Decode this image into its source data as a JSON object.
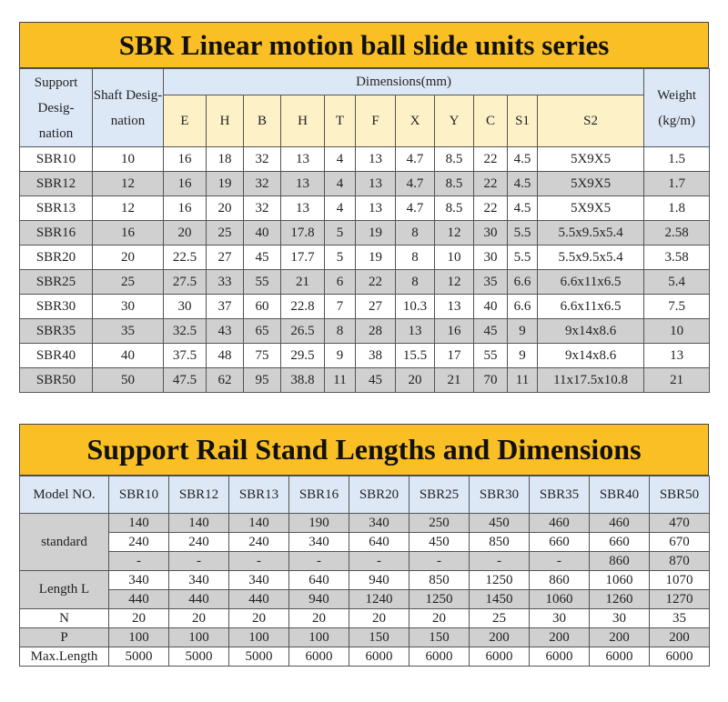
{
  "table1": {
    "title": "SBR Linear motion ball slide units series",
    "header": {
      "support": "Support Desig- nation",
      "shaft": "Shaft Desig- nation",
      "dimensions": "Dimensions(mm)",
      "weight": "Weight (kg/m)"
    },
    "dim_cols": [
      "E",
      "H",
      "B",
      "H",
      "T",
      "F",
      "X",
      "Y",
      "C",
      "S1",
      "S2"
    ],
    "rows": [
      {
        "cells": [
          "SBR10",
          "10",
          "16",
          "18",
          "32",
          "13",
          "4",
          "13",
          "4.7",
          "8.5",
          "22",
          "4.5",
          "5X9X5",
          "1.5"
        ]
      },
      {
        "cells": [
          "SBR12",
          "12",
          "16",
          "19",
          "32",
          "13",
          "4",
          "13",
          "4.7",
          "8.5",
          "22",
          "4.5",
          "5X9X5",
          "1.7"
        ]
      },
      {
        "cells": [
          "SBR13",
          "12",
          "16",
          "20",
          "32",
          "13",
          "4",
          "13",
          "4.7",
          "8.5",
          "22",
          "4.5",
          "5X9X5",
          "1.8"
        ]
      },
      {
        "cells": [
          "SBR16",
          "16",
          "20",
          "25",
          "40",
          "17.8",
          "5",
          "19",
          "8",
          "12",
          "30",
          "5.5",
          "5.5x9.5x5.4",
          "2.58"
        ]
      },
      {
        "cells": [
          "SBR20",
          "20",
          "22.5",
          "27",
          "45",
          "17.7",
          "5",
          "19",
          "8",
          "10",
          "30",
          "5.5",
          "5.5x9.5x5.4",
          "3.58"
        ]
      },
      {
        "cells": [
          "SBR25",
          "25",
          "27.5",
          "33",
          "55",
          "21",
          "6",
          "22",
          "8",
          "12",
          "35",
          "6.6",
          "6.6x11x6.5",
          "5.4"
        ]
      },
      {
        "cells": [
          "SBR30",
          "30",
          "30",
          "37",
          "60",
          "22.8",
          "7",
          "27",
          "10.3",
          "13",
          "40",
          "6.6",
          "6.6x11x6.5",
          "7.5"
        ]
      },
      {
        "cells": [
          "SBR35",
          "35",
          "32.5",
          "43",
          "65",
          "26.5",
          "8",
          "28",
          "13",
          "16",
          "45",
          "9",
          "9x14x8.6",
          "10"
        ]
      },
      {
        "cells": [
          "SBR40",
          "40",
          "37.5",
          "48",
          "75",
          "29.5",
          "9",
          "38",
          "15.5",
          "17",
          "55",
          "9",
          "9x14x8.6",
          "13"
        ]
      },
      {
        "cells": [
          "SBR50",
          "50",
          "47.5",
          "62",
          "95",
          "38.8",
          "11",
          "45",
          "20",
          "21",
          "70",
          "11",
          "11x17.5x10.8",
          "21"
        ]
      }
    ]
  },
  "table2": {
    "title": "Support Rail Stand Lengths and Dimensions",
    "model_label": "Model NO.",
    "models": [
      "SBR10",
      "SBR12",
      "SBR13",
      "SBR16",
      "SBR20",
      "SBR25",
      "SBR30",
      "SBR35",
      "SBR40",
      "SBR50"
    ],
    "label_standard": "standard",
    "label_length": "Length L",
    "length_rows": [
      [
        "140",
        "140",
        "140",
        "190",
        "340",
        "250",
        "450",
        "460",
        "460",
        "470"
      ],
      [
        "240",
        "240",
        "240",
        "340",
        "640",
        "450",
        "850",
        "660",
        "660",
        "670"
      ],
      [
        "-",
        "-",
        "-",
        "-",
        "-",
        "-",
        "-",
        "-",
        "860",
        "870"
      ],
      [
        "340",
        "340",
        "340",
        "640",
        "940",
        "850",
        "1250",
        "860",
        "1060",
        "1070"
      ],
      [
        "440",
        "440",
        "440",
        "940",
        "1240",
        "1250",
        "1450",
        "1060",
        "1260",
        "1270"
      ]
    ],
    "n_label": "N",
    "n_values": [
      "20",
      "20",
      "20",
      "20",
      "20",
      "20",
      "25",
      "30",
      "30",
      "35"
    ],
    "p_label": "P",
    "p_values": [
      "100",
      "100",
      "100",
      "100",
      "150",
      "150",
      "200",
      "200",
      "200",
      "200"
    ],
    "max_label": "Max.Length",
    "max_values": [
      "5000",
      "5000",
      "5000",
      "6000",
      "6000",
      "6000",
      "6000",
      "6000",
      "6000",
      "6000"
    ]
  }
}
